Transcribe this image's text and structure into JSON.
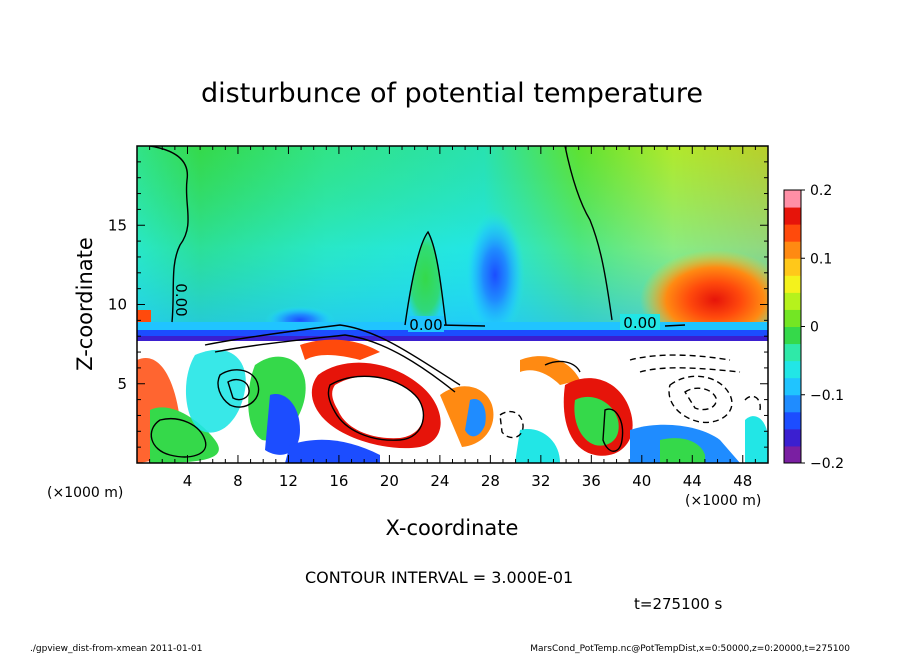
{
  "chart_data": {
    "type": "heatmap",
    "title": "disturbunce of potential temperature",
    "xlabel": "X-coordinate",
    "ylabel": "Z-coordinate",
    "x_unit": "(×1000 m)",
    "y_unit": "(×1000 m)",
    "xlim": [
      0,
      50
    ],
    "ylim": [
      0,
      20
    ],
    "x_ticks": [
      4,
      8,
      12,
      16,
      20,
      24,
      28,
      32,
      36,
      40,
      44,
      48
    ],
    "y_ticks": [
      5,
      10,
      15
    ],
    "colorbar": {
      "min": -0.2,
      "max": 0.2,
      "ticks": [
        {
          "value": 0.2,
          "label": "0.2"
        },
        {
          "value": 0.1,
          "label": "0.1"
        },
        {
          "value": 0,
          "label": "0"
        },
        {
          "value": -0.1,
          "label": "−0.1"
        },
        {
          "value": -0.2,
          "label": "−0.2"
        }
      ],
      "colors": [
        "#7a1fa2",
        "#3b1fd0",
        "#1c4dff",
        "#1f8cff",
        "#20c4ff",
        "#22e6e6",
        "#2fe9a8",
        "#35d94a",
        "#73e624",
        "#b6f21c",
        "#f4f21c",
        "#ffc81a",
        "#ff8a12",
        "#ff4a0c",
        "#e6140a",
        "#ff8fa6"
      ]
    },
    "contour_labels": [
      "0.00",
      "0.00",
      "0.00"
    ],
    "contour_interval_text": "CONTOUR INTERVAL = 3.000E-01",
    "time_text": "t=275100 s",
    "footer_left": "./gpview_dist-from-xmean 2011-01-01",
    "footer_right": "MarsCond_PotTemp.nc@PotTempDist,x=0:50000,z=0:20000,t=275100"
  }
}
